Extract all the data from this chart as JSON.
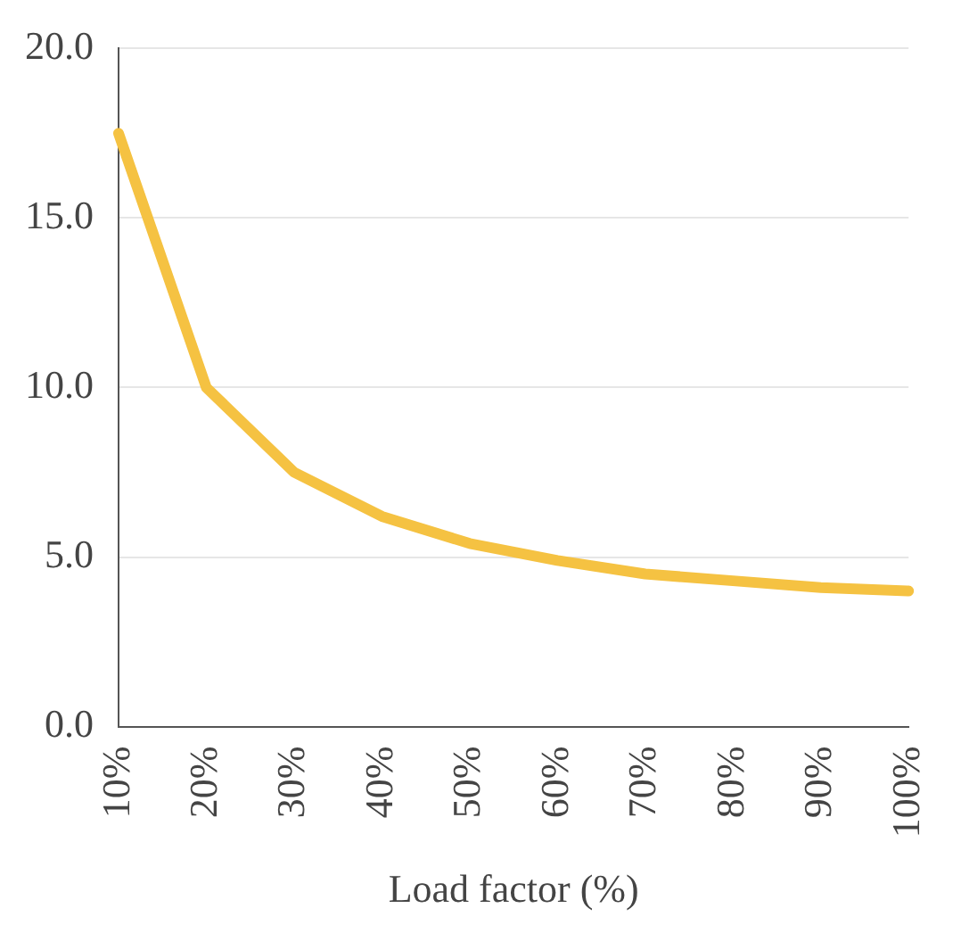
{
  "chart_data": {
    "type": "line",
    "xlabel": "Load factor (%)",
    "categories": [
      "10%",
      "20%",
      "30%",
      "40%",
      "50%",
      "60%",
      "70%",
      "80%",
      "90%",
      "100%"
    ],
    "series": [
      {
        "color": "#f5c242",
        "values": [
          17.5,
          10.0,
          7.5,
          6.2,
          5.4,
          4.9,
          4.5,
          4.3,
          4.1,
          4.0
        ]
      }
    ],
    "ylim": [
      0,
      20
    ],
    "yticks": [
      {
        "value": 0,
        "label": "0.0"
      },
      {
        "value": 5,
        "label": "5.0"
      },
      {
        "value": 10,
        "label": "10.0"
      },
      {
        "value": 15,
        "label": "15.0"
      },
      {
        "value": 20,
        "label": "20.0"
      }
    ],
    "grid": "y",
    "legend": false,
    "marker": "none",
    "line_style": "solid"
  }
}
